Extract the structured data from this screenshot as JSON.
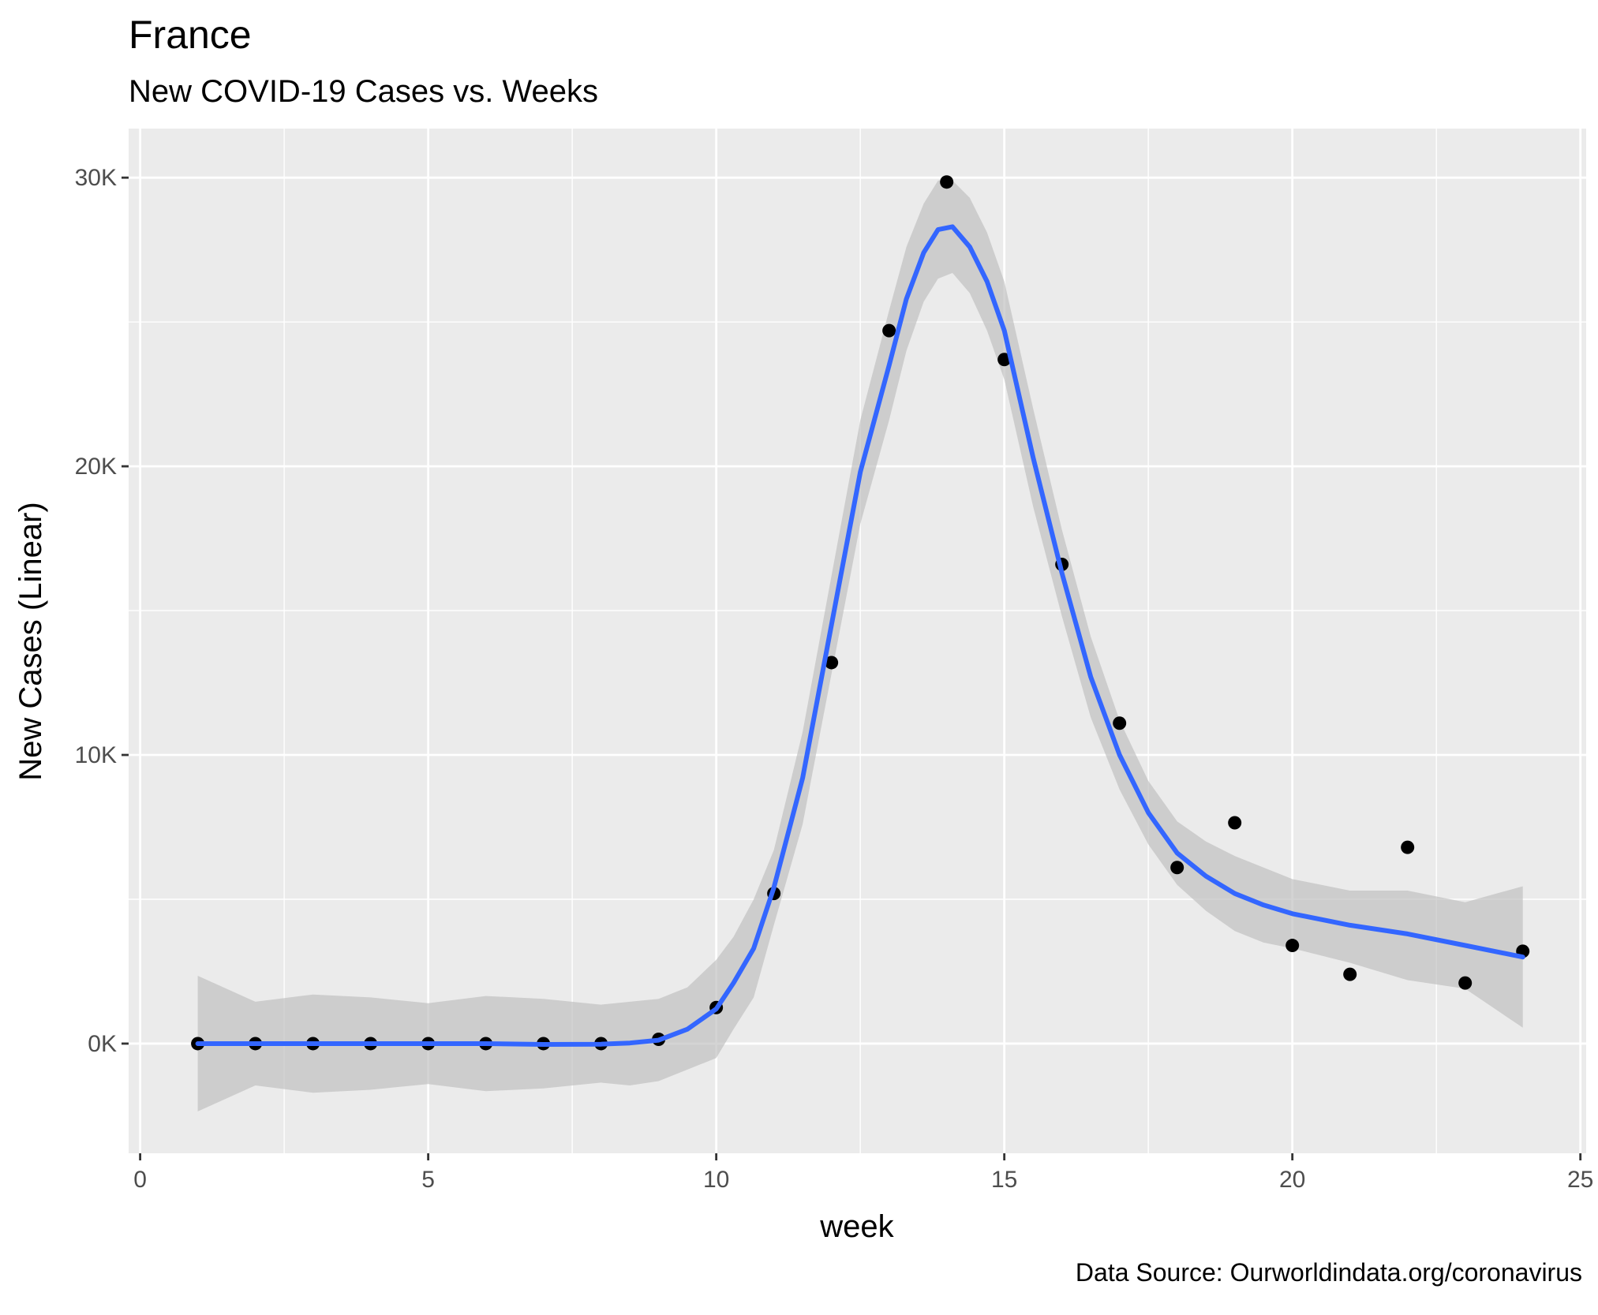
{
  "chart_data": {
    "type": "scatter",
    "title": "France",
    "subtitle": "New COVID-19 Cases vs. Weeks",
    "xlabel": "week",
    "ylabel": "New Cases (Linear)",
    "caption": "Data Source: Ourworldindata.org/coronavirus",
    "xlim": [
      -0.2,
      25.1
    ],
    "ylim": [
      -3800,
      31700
    ],
    "x_ticks": [
      0,
      5,
      10,
      15,
      20,
      25
    ],
    "x_tick_labels": [
      "0",
      "5",
      "10",
      "15",
      "20",
      "25"
    ],
    "y_ticks": [
      0,
      10000,
      20000,
      30000
    ],
    "y_tick_labels": [
      "0K",
      "10K",
      "20K",
      "30K"
    ],
    "grid": true,
    "colors": {
      "panel": "#ebebeb",
      "grid": "#ffffff",
      "points": "#000000",
      "smooth_line": "#3366ff",
      "ribbon": "#bdbdbd"
    },
    "series": [
      {
        "kind": "points",
        "x": [
          1,
          2,
          3,
          4,
          5,
          6,
          7,
          8,
          9,
          10,
          11,
          12,
          13,
          14,
          15,
          16,
          17,
          18,
          19,
          20,
          21,
          22,
          23,
          24
        ],
        "y": [
          0,
          0,
          0,
          0,
          0,
          0,
          0,
          0,
          150,
          1250,
          5200,
          13200,
          24700,
          29850,
          23700,
          16600,
          11100,
          6100,
          7650,
          3400,
          2400,
          6800,
          2100,
          3200
        ]
      },
      {
        "kind": "smooth",
        "x": [
          1,
          2,
          3,
          4,
          5,
          6,
          7,
          8,
          8.5,
          9,
          9.5,
          10,
          10.3,
          10.65,
          11,
          11.5,
          12,
          12.5,
          13,
          13.3,
          13.6,
          13.85,
          14.1,
          14.4,
          14.7,
          15,
          15.5,
          16,
          16.5,
          17,
          17.5,
          18,
          18.5,
          19,
          19.5,
          20,
          21,
          22,
          23,
          24
        ],
        "y": [
          0,
          0,
          0,
          0,
          0,
          0,
          -30,
          -20,
          20,
          120,
          500,
          1200,
          2100,
          3300,
          5400,
          9200,
          14500,
          19800,
          23500,
          25800,
          27400,
          28200,
          28300,
          27600,
          26400,
          24700,
          20300,
          16300,
          12700,
          10000,
          8000,
          6600,
          5800,
          5200,
          4800,
          4500,
          4100,
          3800,
          3400,
          3000
        ]
      },
      {
        "kind": "confidence_band",
        "x": [
          1,
          2,
          3,
          4,
          5,
          6,
          7,
          8,
          8.5,
          9,
          9.5,
          10,
          10.3,
          10.65,
          11,
          11.5,
          12,
          12.5,
          13,
          13.3,
          13.6,
          13.85,
          14.1,
          14.4,
          14.7,
          15,
          15.5,
          16,
          16.5,
          17,
          17.5,
          18,
          18.5,
          19,
          19.5,
          20,
          21,
          22,
          23,
          24
        ],
        "upper": [
          2350,
          1450,
          1700,
          1600,
          1400,
          1650,
          1550,
          1350,
          1450,
          1550,
          1950,
          2900,
          3700,
          5000,
          6700,
          10800,
          16200,
          21600,
          25400,
          27600,
          29100,
          29900,
          29900,
          29300,
          28100,
          26400,
          22000,
          17800,
          14100,
          11200,
          9100,
          7700,
          7000,
          6500,
          6100,
          5700,
          5300,
          5300,
          4900,
          5450
        ],
        "lower": [
          -2350,
          -1450,
          -1700,
          -1600,
          -1400,
          -1650,
          -1550,
          -1350,
          -1450,
          -1300,
          -900,
          -500,
          500,
          1600,
          4100,
          7600,
          12800,
          18000,
          21600,
          24000,
          25700,
          26500,
          26700,
          26000,
          24700,
          23000,
          18600,
          14800,
          11300,
          8800,
          6900,
          5500,
          4600,
          3900,
          3500,
          3300,
          2800,
          2200,
          1900,
          550
        ]
      }
    ]
  }
}
